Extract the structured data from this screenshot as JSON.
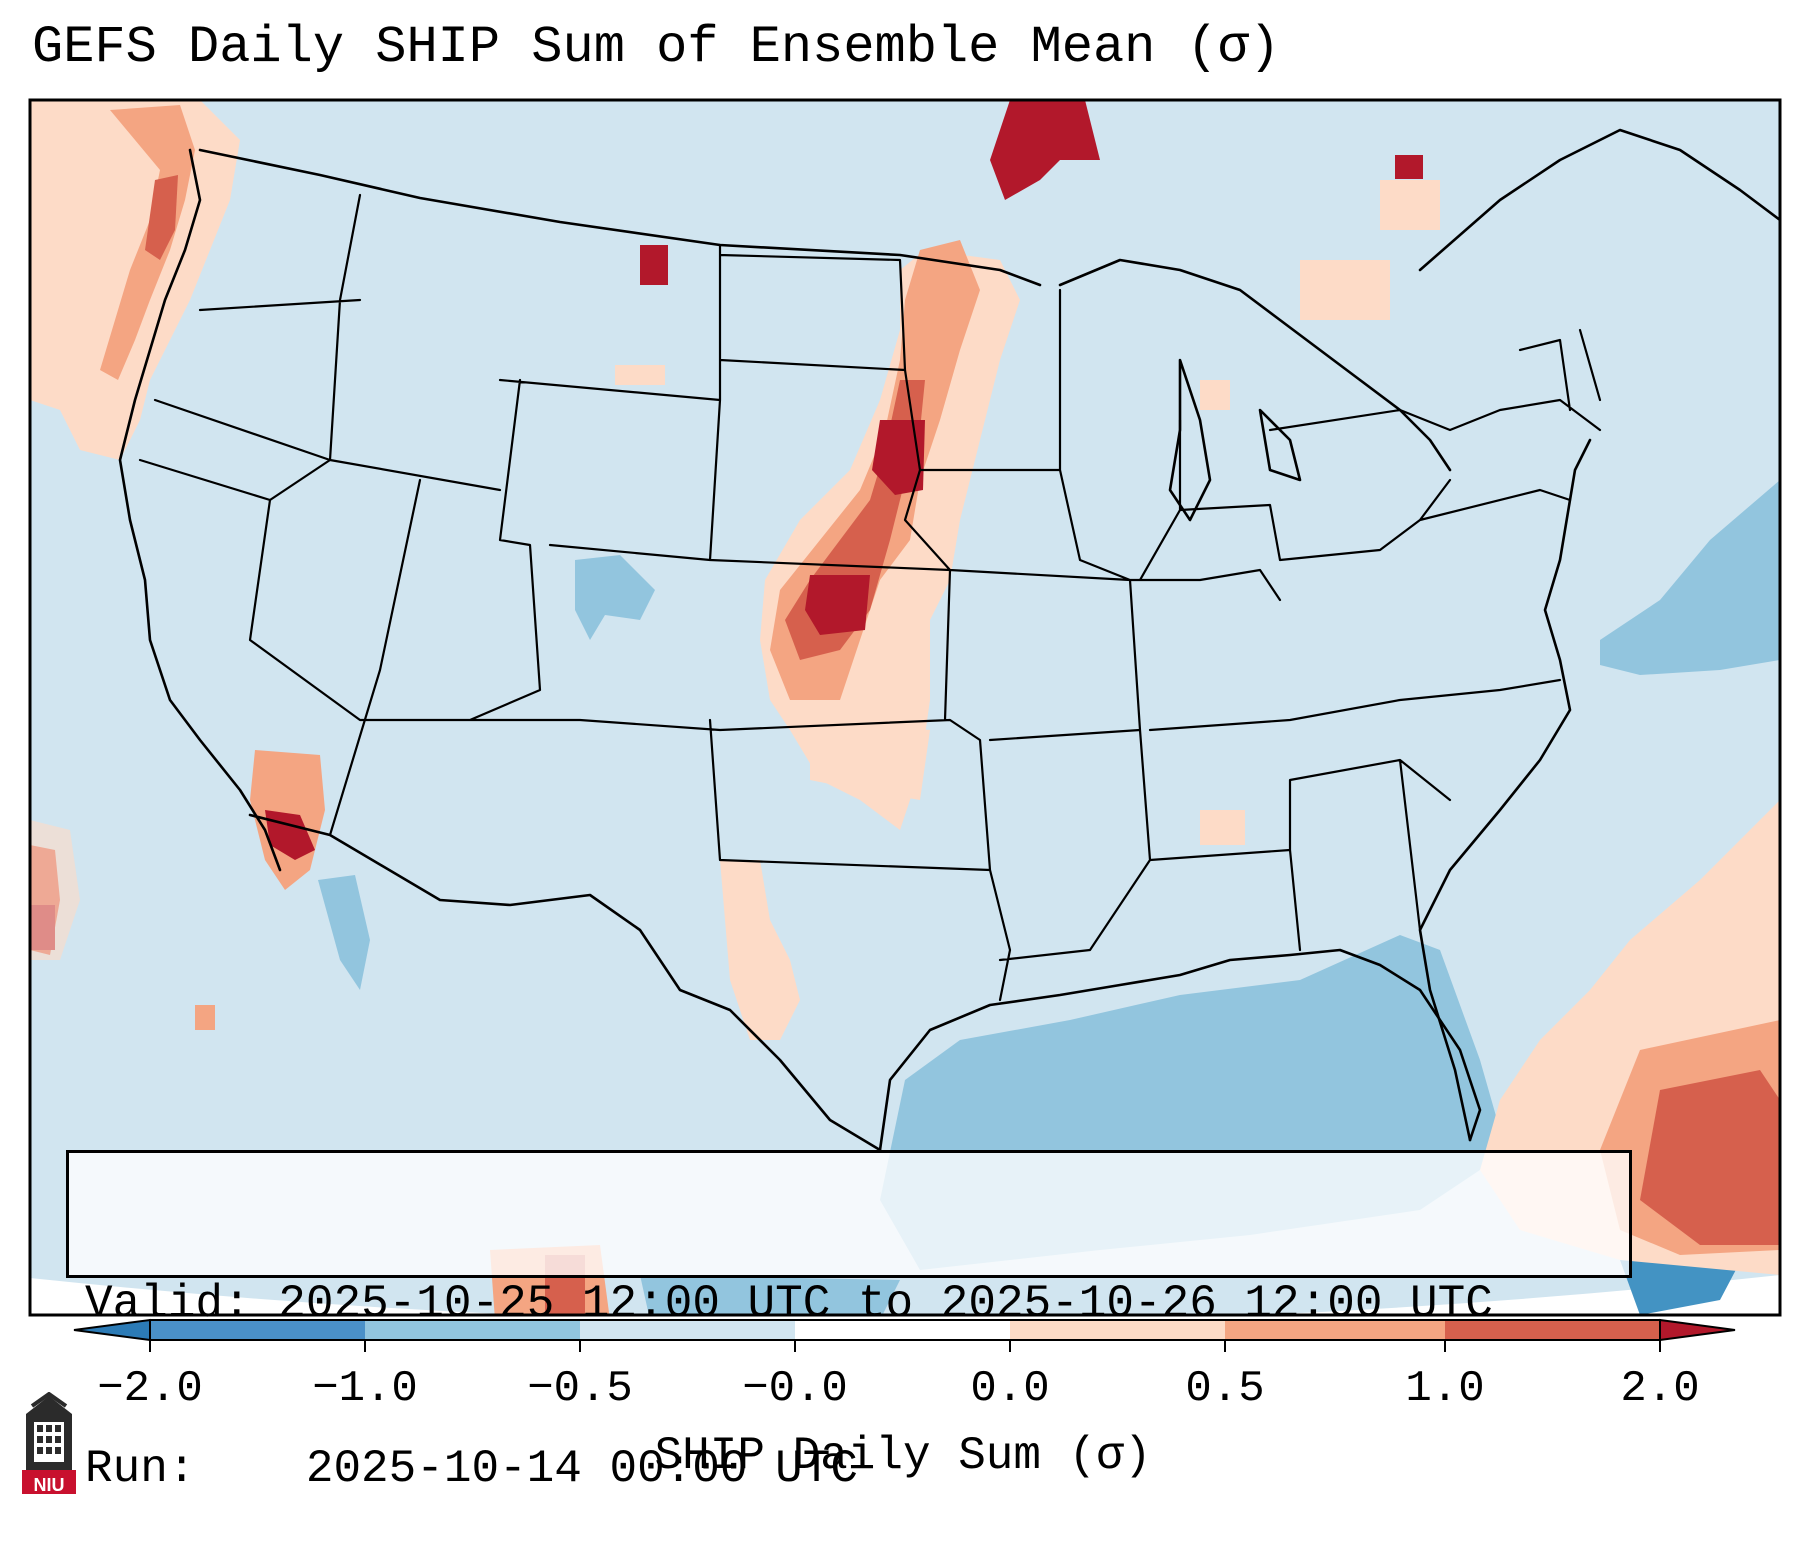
{
  "title": "GEFS Daily SHIP Sum of Ensemble Mean (σ)",
  "info": {
    "valid_label": "Valid:",
    "valid_value": "2025-10-25 12:00 UTC to 2025-10-26 12:00 UTC",
    "run_label": "Run:",
    "run_value": "2025-10-14 00:00 UTC"
  },
  "colorbar": {
    "label": "SHIP Daily Sum (σ)",
    "ticks": [
      "−2.0",
      "−1.0",
      "−0.5",
      "−0.0",
      "0.0",
      "0.5",
      "1.0",
      "2.0"
    ],
    "bins": [
      {
        "range": "< -2.0",
        "color": "#2c7bb6"
      },
      {
        "range": "-2.0 to -1.0",
        "color": "#4a90c8"
      },
      {
        "range": "-1.0 to -0.5",
        "color": "#92c5de"
      },
      {
        "range": "-0.5 to -0.0",
        "color": "#d1e5f0"
      },
      {
        "range": "-0.0 to 0.0",
        "color": "#ffffff"
      },
      {
        "range": "0.0 to 0.5",
        "color": "#fddbc7"
      },
      {
        "range": "0.5 to 1.0",
        "color": "#f4a582"
      },
      {
        "range": "1.0 to 2.0",
        "color": "#d6604d"
      },
      {
        "range": "> 2.0",
        "color": "#b2182b"
      }
    ]
  },
  "logo": {
    "text": "NIU",
    "icon": "niu-university-tower-logo"
  },
  "colors": {
    "background_field": "#d1e5f0",
    "weak_negative": "#92c5de",
    "strong_negative": "#4393c3",
    "weak_positive": "#fddbc7",
    "moderate_positive": "#f4a582",
    "strong_positive": "#d6604d",
    "extreme_positive": "#b2182b",
    "border_lines": "#000000"
  }
}
